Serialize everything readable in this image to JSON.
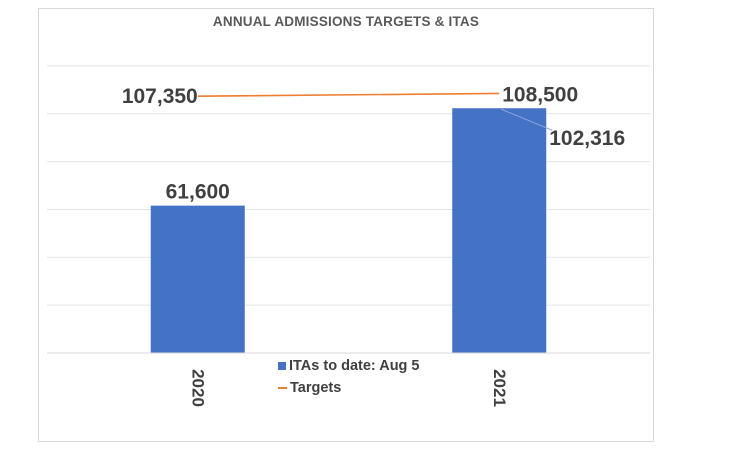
{
  "chart_data": {
    "type": "bar",
    "title": "ANNUAL ADMISSIONS TARGETS & ITAS",
    "categories": [
      "2020",
      "2021"
    ],
    "series": [
      {
        "name": "ITAs to date: Aug 5",
        "kind": "bar",
        "color": "#4472c4",
        "values": [
          61600,
          102316
        ],
        "labels": [
          "61,600",
          "102,316"
        ]
      },
      {
        "name": "Targets",
        "kind": "line",
        "color": "#ed7d31",
        "values": [
          107350,
          108500
        ],
        "labels": [
          "107,350",
          "108,500"
        ]
      }
    ],
    "ylim": [
      0,
      130000
    ],
    "grid": true,
    "legend_position": "bottom"
  }
}
